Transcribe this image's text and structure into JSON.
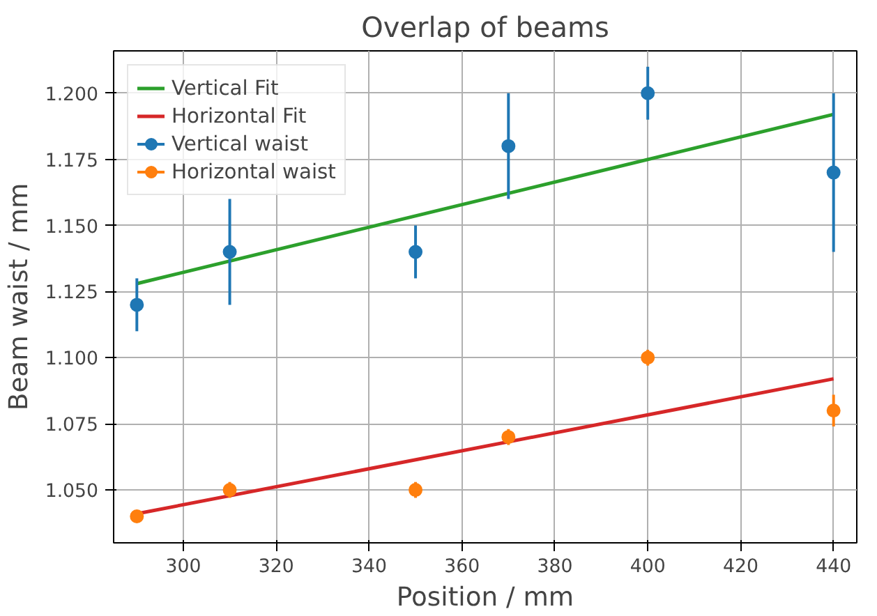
{
  "chart_data": {
    "type": "scatter",
    "title": "Overlap of beams",
    "xlabel": "Position / mm",
    "ylabel": "Beam waist / mm",
    "xlim": [
      285,
      445
    ],
    "ylim": [
      1.03,
      1.216
    ],
    "xticks": [
      300,
      320,
      340,
      360,
      380,
      400,
      420,
      440
    ],
    "yticks": [
      {
        "value": 1.05,
        "label": "1.050"
      },
      {
        "value": 1.075,
        "label": "1.075"
      },
      {
        "value": 1.1,
        "label": "1.100"
      },
      {
        "value": 1.125,
        "label": "1.125"
      },
      {
        "value": 1.15,
        "label": "1.150"
      },
      {
        "value": 1.175,
        "label": "1.175"
      },
      {
        "value": 1.2,
        "label": "1.200"
      }
    ],
    "grid": true,
    "legend": "top left",
    "series": [
      {
        "name": "Vertical Fit",
        "type": "line",
        "color": "#2ca02c",
        "x": [
          290,
          440
        ],
        "values": [
          1.128,
          1.192
        ]
      },
      {
        "name": "Horizontal Fit",
        "type": "line",
        "color": "#d62728",
        "x": [
          290,
          440
        ],
        "values": [
          1.041,
          1.092
        ]
      },
      {
        "name": "Vertical waist",
        "marker": "circle",
        "color": "#1f77b4",
        "x": [
          290,
          310,
          350,
          370,
          400,
          440
        ],
        "values": [
          1.12,
          1.14,
          1.14,
          1.18,
          1.2,
          1.17
        ],
        "errors": [
          0.01,
          0.02,
          0.01,
          0.02,
          0.01,
          0.03
        ]
      },
      {
        "name": "Horizontal waist",
        "marker": "circle",
        "color": "#ff7f0e",
        "x": [
          290,
          310,
          350,
          370,
          400,
          440
        ],
        "values": [
          1.04,
          1.05,
          1.05,
          1.07,
          1.1,
          1.08
        ],
        "errors": [
          null,
          0.003,
          0.003,
          0.003,
          0.003,
          0.006
        ]
      }
    ]
  }
}
